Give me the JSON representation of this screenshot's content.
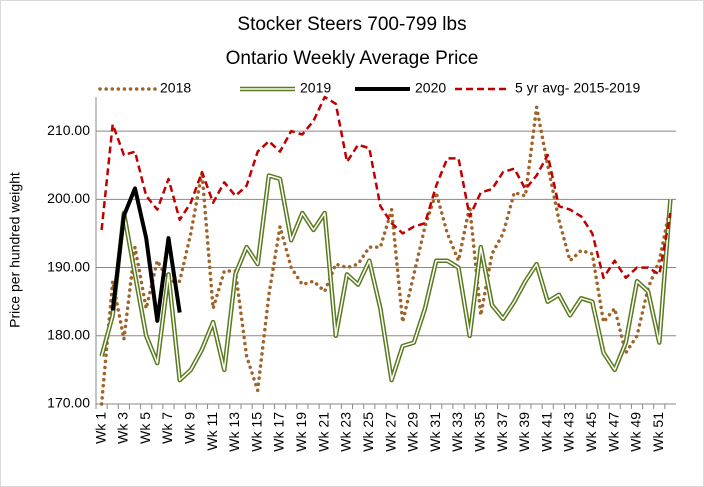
{
  "chart_data": {
    "type": "line",
    "title": "Stocker Steers 700-799 lbs",
    "subtitle": "Ontario Weekly Average Price",
    "y_label": "Price per hundred weight",
    "categories": [
      "Wk 1",
      null,
      "Wk 3",
      null,
      "Wk 5",
      null,
      "Wk 7",
      null,
      "Wk 9",
      null,
      "Wk 11",
      null,
      "Wk 13",
      null,
      "Wk 15",
      null,
      "Wk 17",
      null,
      "Wk 19",
      null,
      "Wk 21",
      null,
      "Wk 23",
      null,
      "Wk 25",
      null,
      "Wk 27",
      null,
      "Wk 29",
      null,
      "Wk 31",
      null,
      "Wk 33",
      null,
      "Wk 35",
      null,
      "Wk 37",
      null,
      "Wk 39",
      null,
      "Wk 41",
      null,
      "Wk 43",
      null,
      "Wk 45",
      null,
      "Wk 47",
      null,
      "Wk 49",
      null,
      "Wk 51",
      null
    ],
    "ylim": [
      170,
      215
    ],
    "yticks": [
      {
        "value": 170,
        "label": "170.00"
      },
      {
        "value": 180,
        "label": "180.00"
      },
      {
        "value": 190,
        "label": "190.00"
      },
      {
        "value": 200,
        "label": "200.00"
      },
      {
        "value": 210,
        "label": "210.00"
      }
    ],
    "grid": true,
    "legend": "top",
    "series": [
      {
        "name": "2018",
        "color": "#a0642a",
        "style": "dotted",
        "values": [
          170,
          188,
          179.5,
          193,
          184,
          191,
          188,
          188,
          195,
          204,
          184,
          189.5,
          189.5,
          177,
          172,
          186,
          196,
          190,
          187.5,
          188,
          186.5,
          190.5,
          190,
          190.5,
          193,
          193,
          198.5,
          182,
          189,
          196,
          201,
          195,
          191,
          199,
          183,
          192,
          195,
          201,
          200.5,
          213.5,
          205,
          197,
          191,
          192.5,
          192,
          182,
          184,
          177.5,
          180,
          187,
          191,
          199
        ]
      },
      {
        "name": "2019",
        "color": "#5a7a1e",
        "style": "double",
        "values": [
          177,
          183,
          198,
          189,
          180,
          176,
          189,
          173.5,
          175,
          178,
          182,
          175,
          189,
          193,
          190.5,
          203.5,
          203,
          194,
          198,
          195.5,
          198,
          180,
          189,
          187.5,
          191,
          184,
          173.5,
          178.5,
          179,
          184,
          191,
          191,
          190,
          180,
          193,
          184.5,
          182.5,
          185,
          188,
          190.5,
          185,
          186,
          183,
          185.5,
          185,
          177.5,
          175,
          179,
          188,
          186.5,
          179,
          200
        ]
      },
      {
        "name": "2020",
        "color": "#000000",
        "style": "solid",
        "values": [
          null,
          183.7,
          197.6,
          201.6,
          194.3,
          182.2,
          194.3,
          183.4,
          null,
          null,
          null,
          null,
          null,
          null,
          null,
          null,
          null,
          null,
          null,
          null,
          null,
          null,
          null,
          null,
          null,
          null,
          null,
          null,
          null,
          null,
          null,
          null,
          null,
          null,
          null,
          null,
          null,
          null,
          null,
          null,
          null,
          null,
          null,
          null,
          null,
          null,
          null,
          null,
          null,
          null,
          null,
          null
        ]
      },
      {
        "name": "5 yr avg- 2015-2019",
        "color": "#c00000",
        "style": "dashed",
        "values": [
          195.5,
          211,
          206.5,
          207,
          200.5,
          198.5,
          203,
          197,
          199.5,
          204,
          199.5,
          202.5,
          200.5,
          202,
          207,
          208.5,
          207,
          210,
          209.5,
          211.5,
          215,
          214,
          205.5,
          208,
          207.5,
          199,
          196.5,
          195,
          196,
          196.5,
          202,
          206,
          206,
          197.5,
          201,
          201.5,
          204,
          204.5,
          201.5,
          203.5,
          206.5,
          199,
          198.5,
          197.5,
          195,
          188.5,
          191,
          188.5,
          190,
          190,
          189,
          198
        ]
      }
    ]
  }
}
